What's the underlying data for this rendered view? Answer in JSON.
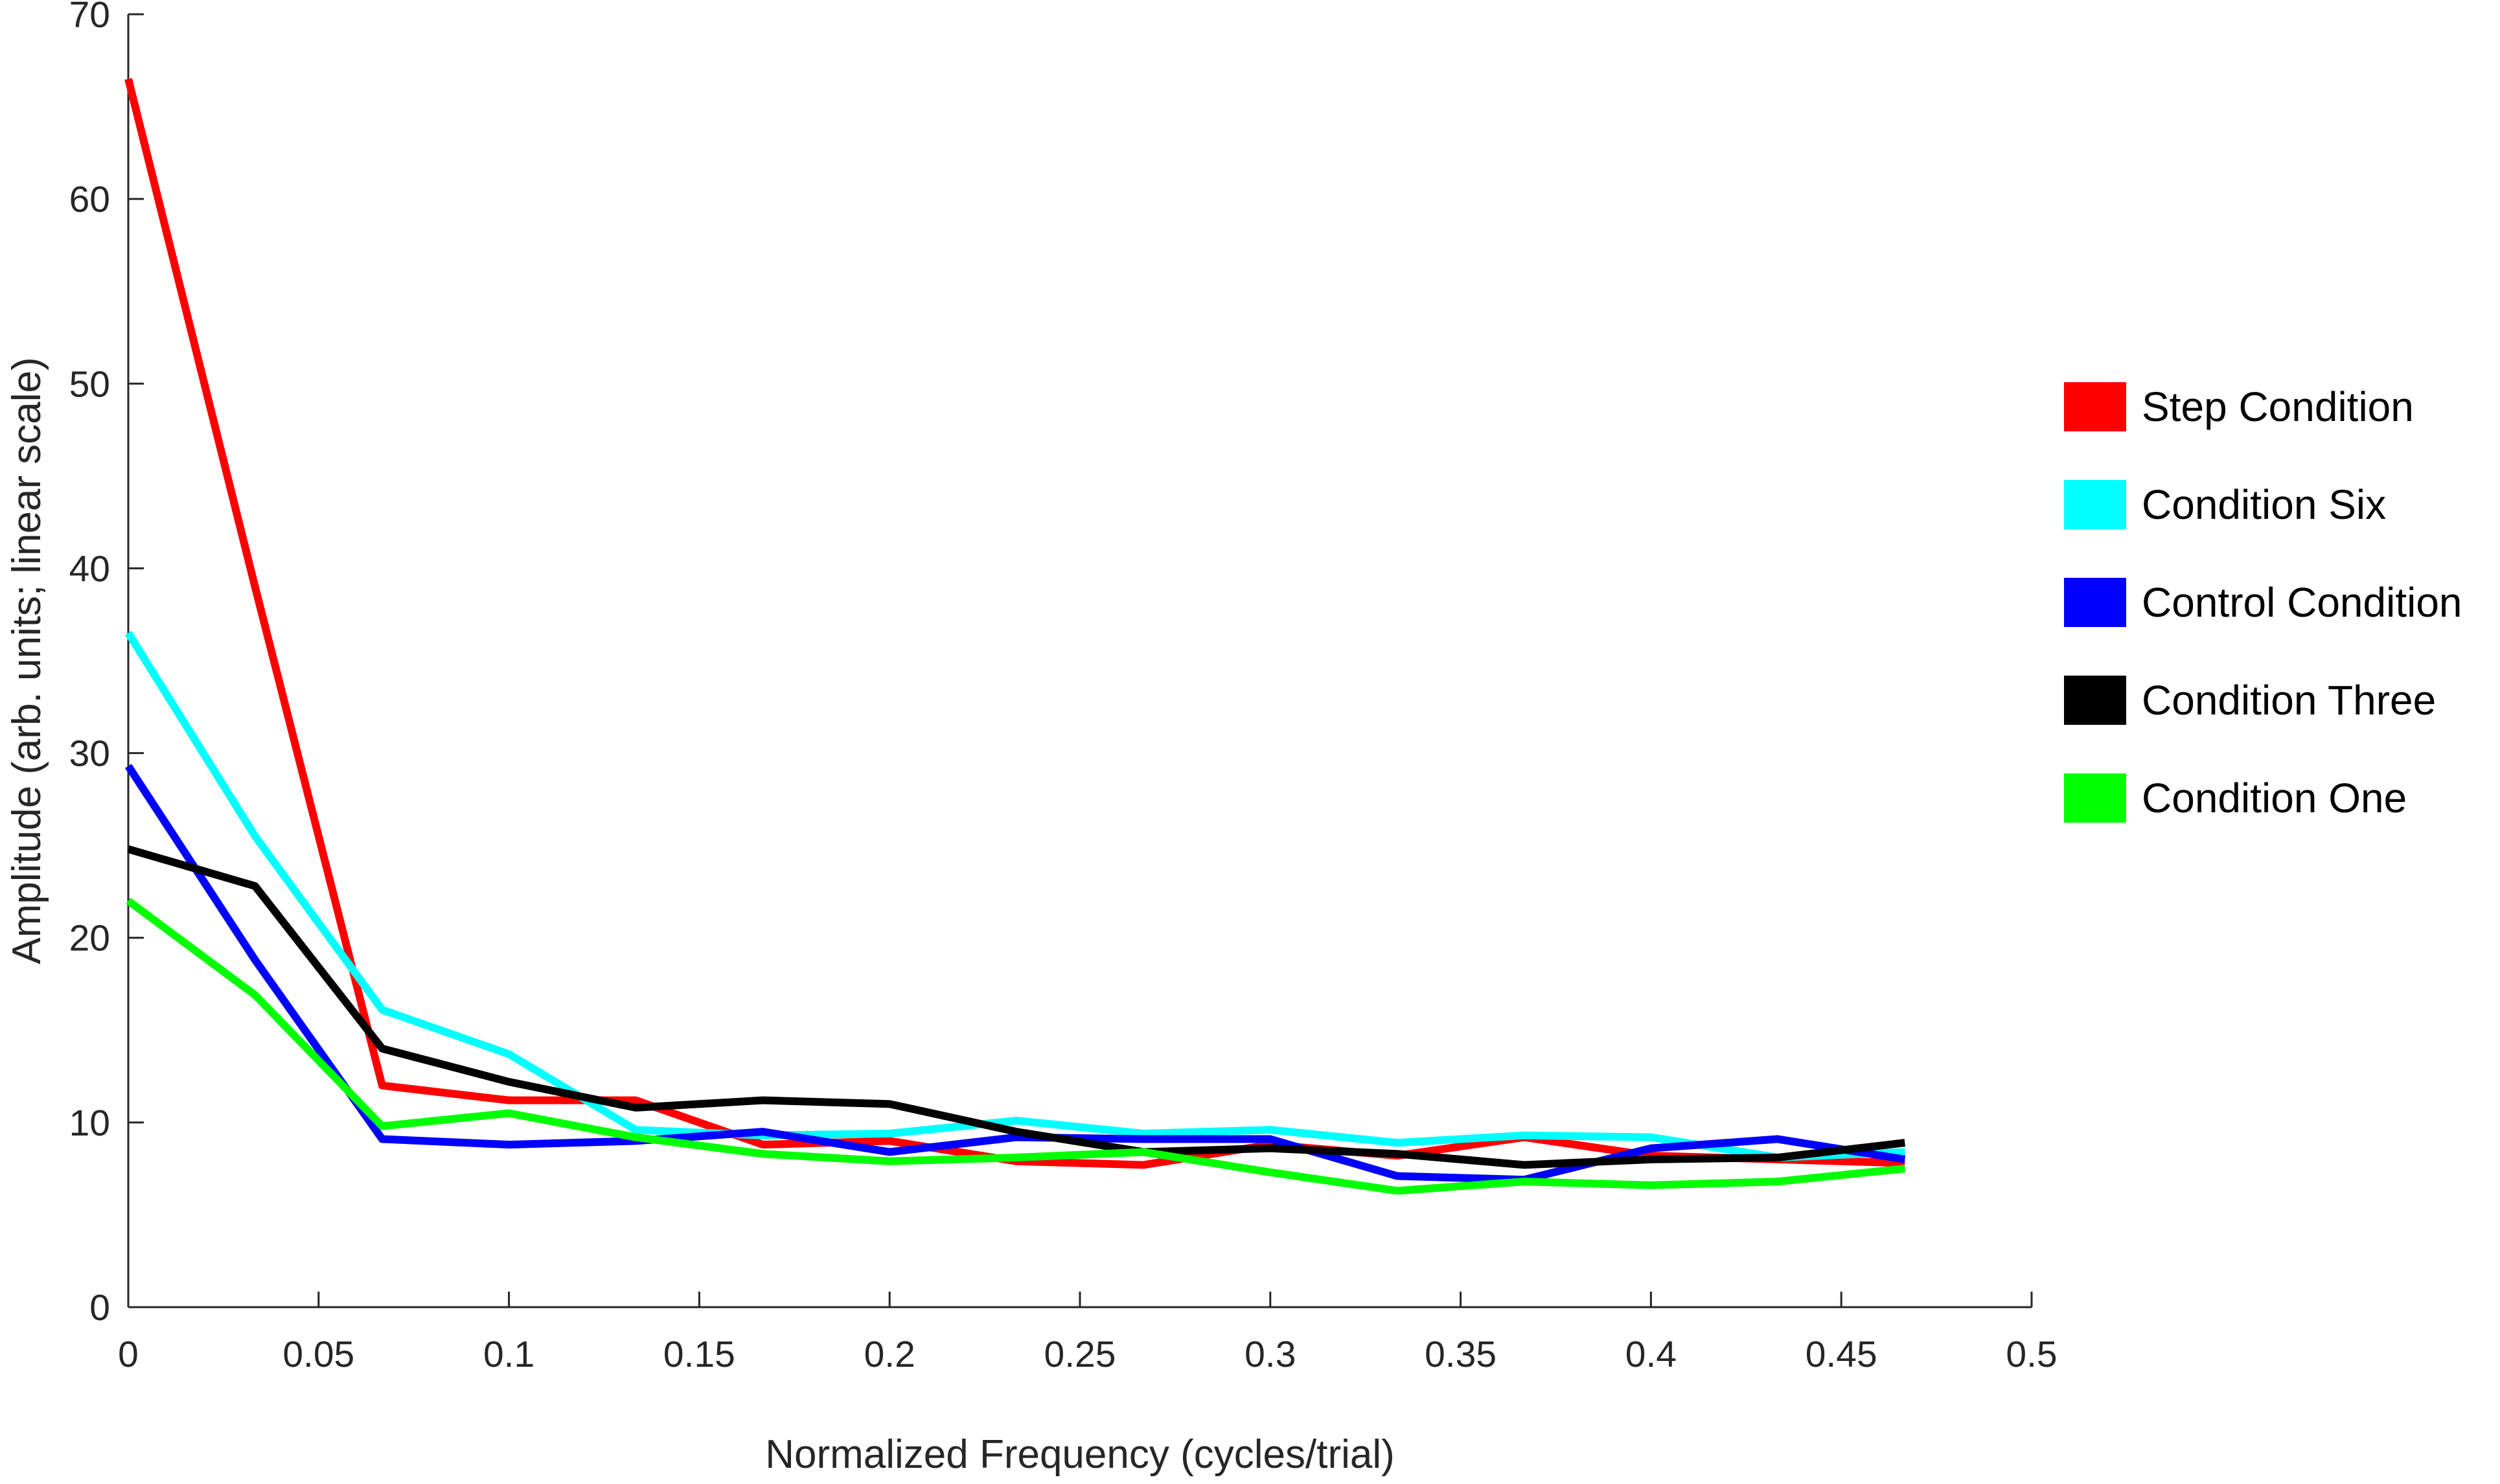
{
  "chart_data": {
    "type": "line",
    "title": "",
    "xlabel": "Normalized Frequency (cycles/trial)",
    "ylabel": "Amplitude (arb. units; linear scale)",
    "xlim": [
      0,
      0.5
    ],
    "ylim": [
      0,
      70
    ],
    "grid": false,
    "legend_position": "right",
    "x_ticks": [
      0,
      0.05,
      0.1,
      0.15,
      0.2,
      0.25,
      0.3,
      0.35,
      0.4,
      0.45,
      0.5
    ],
    "x_tick_labels": [
      "0",
      "0.05",
      "0.1",
      "0.15",
      "0.2",
      "0.25",
      "0.3",
      "0.35",
      "0.4",
      "0.45",
      "0.5"
    ],
    "y_ticks": [
      0,
      10,
      20,
      30,
      40,
      50,
      60,
      70
    ],
    "y_tick_labels": [
      "0",
      "10",
      "20",
      "30",
      "40",
      "50",
      "60",
      "70"
    ],
    "x": [
      0,
      0.0333,
      0.0667,
      0.1,
      0.1333,
      0.1667,
      0.2,
      0.2333,
      0.2667,
      0.3,
      0.3333,
      0.3667,
      0.4,
      0.4333,
      0.4667
    ],
    "series": [
      {
        "name": "Step Condition",
        "color": "#ff0000",
        "values": [
          66.5,
          39.0,
          12.0,
          11.2,
          11.2,
          8.8,
          9.0,
          7.9,
          7.7,
          8.8,
          8.2,
          9.2,
          8.2,
          8.0,
          7.8
        ]
      },
      {
        "name": "Condition Six",
        "color": "#00ffff",
        "values": [
          36.5,
          25.5,
          16.1,
          13.7,
          9.6,
          9.3,
          9.4,
          10.1,
          9.4,
          9.6,
          8.9,
          9.3,
          9.2,
          8.1,
          8.4
        ]
      },
      {
        "name": "Control Condition",
        "color": "#0000ff",
        "values": [
          29.3,
          18.8,
          9.1,
          8.8,
          9.0,
          9.5,
          8.4,
          9.2,
          9.1,
          9.1,
          7.1,
          6.9,
          8.6,
          9.1,
          8.0
        ]
      },
      {
        "name": "Condition Three",
        "color": "#000000",
        "values": [
          24.8,
          22.8,
          14.0,
          12.2,
          10.8,
          11.2,
          11.0,
          9.5,
          8.4,
          8.6,
          8.3,
          7.7,
          8.0,
          8.1,
          8.9
        ]
      },
      {
        "name": "Condition One",
        "color": "#00ff00",
        "values": [
          22.0,
          16.9,
          9.8,
          10.5,
          9.2,
          8.3,
          7.9,
          8.1,
          8.4,
          7.3,
          6.3,
          6.8,
          6.6,
          6.8,
          7.5
        ]
      }
    ]
  }
}
